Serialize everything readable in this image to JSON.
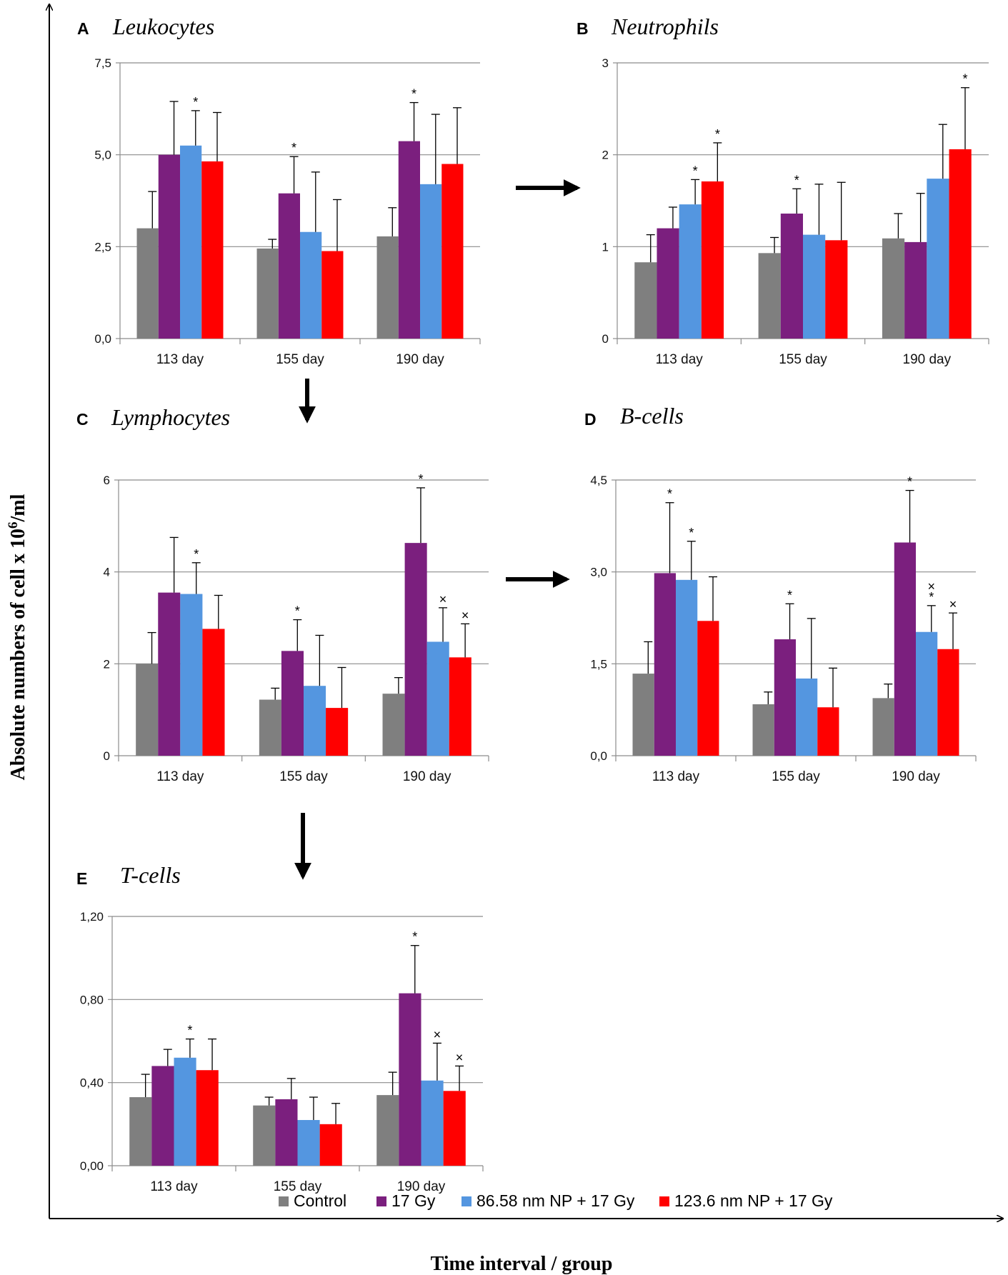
{
  "figure": {
    "y_axis_title": "Absolute numbers of cell x 10",
    "y_axis_title_sup": "6",
    "y_axis_title_tail": "/ml",
    "x_axis_title": "Time interval / group"
  },
  "legend": [
    {
      "name": "Control",
      "color": "#7f7f7f"
    },
    {
      "name": "17 Gy",
      "color": "#7b1f7e"
    },
    {
      "name": "86.58 nm NP + 17 Gy",
      "color": "#5496e0"
    },
    {
      "name": "123.6 nm NP + 17 Gy",
      "color": "#ff0000"
    }
  ],
  "chart_data": [
    {
      "letter": "A",
      "title": "Leukocytes",
      "type": "bar",
      "categories": [
        "113 day",
        "155 day",
        "190 day"
      ],
      "ylim": [
        0,
        7.5
      ],
      "yticks": [
        "0,0",
        "2,5",
        "5,0",
        "7,5"
      ],
      "series": [
        {
          "name": "Control",
          "values": [
            3.0,
            2.45,
            2.78
          ],
          "errors": [
            1.0,
            0.25,
            0.78
          ]
        },
        {
          "name": "17 Gy",
          "values": [
            5.0,
            3.95,
            5.37
          ],
          "errors": [
            1.45,
            1.0,
            1.05
          ]
        },
        {
          "name": "86.58 nm NP + 17 Gy",
          "values": [
            5.25,
            2.9,
            4.2
          ],
          "errors": [
            0.95,
            1.63,
            1.9
          ]
        },
        {
          "name": "123.6 nm NP + 17 Gy",
          "values": [
            4.82,
            2.38,
            4.75
          ],
          "errors": [
            1.33,
            1.4,
            1.53
          ]
        }
      ],
      "marks": [
        {
          "cat": 0,
          "series": 2,
          "text": "*"
        },
        {
          "cat": 1,
          "series": 1,
          "text": "*"
        },
        {
          "cat": 2,
          "series": 1,
          "text": "*"
        }
      ]
    },
    {
      "letter": "B",
      "title": "Neutrophils",
      "type": "bar",
      "categories": [
        "113 day",
        "155 day",
        "190 day"
      ],
      "ylim": [
        0,
        3
      ],
      "yticks": [
        "0",
        "1",
        "2",
        "3"
      ],
      "series": [
        {
          "name": "Control",
          "values": [
            0.83,
            0.93,
            1.09
          ],
          "errors": [
            0.3,
            0.17,
            0.27
          ]
        },
        {
          "name": "17 Gy",
          "values": [
            1.2,
            1.36,
            1.05
          ],
          "errors": [
            0.23,
            0.27,
            0.53
          ]
        },
        {
          "name": "86.58 nm NP + 17 Gy",
          "values": [
            1.46,
            1.13,
            1.74
          ],
          "errors": [
            0.27,
            0.55,
            0.59
          ]
        },
        {
          "name": "123.6 nm NP + 17 Gy",
          "values": [
            1.71,
            1.07,
            2.06
          ],
          "errors": [
            0.42,
            0.63,
            0.67
          ]
        }
      ],
      "marks": [
        {
          "cat": 0,
          "series": 2,
          "text": "*"
        },
        {
          "cat": 0,
          "series": 3,
          "text": "*"
        },
        {
          "cat": 1,
          "series": 1,
          "text": "*"
        },
        {
          "cat": 2,
          "series": 3,
          "text": "*"
        }
      ]
    },
    {
      "letter": "C",
      "title": "Lymphocytes",
      "type": "bar",
      "categories": [
        "113 day",
        "155 day",
        "190 day"
      ],
      "ylim": [
        0,
        6
      ],
      "yticks": [
        "0",
        "2",
        "4",
        "6"
      ],
      "series": [
        {
          "name": "Control",
          "values": [
            2.0,
            1.22,
            1.35
          ],
          "errors": [
            0.68,
            0.25,
            0.35
          ]
        },
        {
          "name": "17 Gy",
          "values": [
            3.55,
            2.28,
            4.63
          ],
          "errors": [
            1.2,
            0.68,
            1.2
          ]
        },
        {
          "name": "86.58 nm NP + 17 Gy",
          "values": [
            3.52,
            1.52,
            2.48
          ],
          "errors": [
            0.68,
            1.1,
            0.74
          ]
        },
        {
          "name": "123.6 nm NP + 17 Gy",
          "values": [
            2.76,
            1.04,
            2.14
          ],
          "errors": [
            0.73,
            0.88,
            0.73
          ]
        }
      ],
      "marks": [
        {
          "cat": 0,
          "series": 2,
          "text": "*"
        },
        {
          "cat": 1,
          "series": 1,
          "text": "*"
        },
        {
          "cat": 2,
          "series": 1,
          "text": "*"
        },
        {
          "cat": 2,
          "series": 2,
          "text": "×"
        },
        {
          "cat": 2,
          "series": 3,
          "text": "×"
        }
      ]
    },
    {
      "letter": "D",
      "title": "B-cells",
      "type": "bar",
      "categories": [
        "113 day",
        "155 day",
        "190 day"
      ],
      "ylim": [
        0,
        4.5
      ],
      "yticks": [
        "0,0",
        "1,5",
        "3,0",
        "4,5"
      ],
      "series": [
        {
          "name": "Control",
          "values": [
            1.34,
            0.84,
            0.94
          ],
          "errors": [
            0.52,
            0.2,
            0.23
          ]
        },
        {
          "name": "17 Gy",
          "values": [
            2.98,
            1.9,
            3.48
          ],
          "errors": [
            1.15,
            0.58,
            0.85
          ]
        },
        {
          "name": "86.58 nm NP + 17 Gy",
          "values": [
            2.87,
            1.26,
            2.02
          ],
          "errors": [
            0.63,
            0.98,
            0.43
          ]
        },
        {
          "name": "123.6 nm NP + 17 Gy",
          "values": [
            2.2,
            0.79,
            1.74
          ],
          "errors": [
            0.72,
            0.64,
            0.59
          ]
        }
      ],
      "marks": [
        {
          "cat": 0,
          "series": 1,
          "text": "*"
        },
        {
          "cat": 0,
          "series": 2,
          "text": "*"
        },
        {
          "cat": 1,
          "series": 1,
          "text": "*"
        },
        {
          "cat": 2,
          "series": 1,
          "text": "*"
        },
        {
          "cat": 2,
          "series": 2,
          "text": "*"
        },
        {
          "cat": 2,
          "series": 2,
          "text": "×"
        },
        {
          "cat": 2,
          "series": 3,
          "text": "×"
        }
      ]
    },
    {
      "letter": "E",
      "title": "T-cells",
      "type": "bar",
      "categories": [
        "113 day",
        "155 day",
        "190 day"
      ],
      "ylim": [
        0,
        1.2
      ],
      "yticks": [
        "0,00",
        "0,40",
        "0,80",
        "1,20"
      ],
      "series": [
        {
          "name": "Control",
          "values": [
            0.33,
            0.29,
            0.34
          ],
          "errors": [
            0.11,
            0.04,
            0.11
          ]
        },
        {
          "name": "17 Gy",
          "values": [
            0.48,
            0.32,
            0.83
          ],
          "errors": [
            0.08,
            0.1,
            0.23
          ]
        },
        {
          "name": "86.58 nm NP + 17 Gy",
          "values": [
            0.52,
            0.22,
            0.41
          ],
          "errors": [
            0.09,
            0.11,
            0.18
          ]
        },
        {
          "name": "123.6 nm NP + 17 Gy",
          "values": [
            0.46,
            0.2,
            0.36
          ],
          "errors": [
            0.15,
            0.1,
            0.12
          ]
        }
      ],
      "marks": [
        {
          "cat": 0,
          "series": 2,
          "text": "*"
        },
        {
          "cat": 2,
          "series": 1,
          "text": "*"
        },
        {
          "cat": 2,
          "series": 2,
          "text": "×"
        },
        {
          "cat": 2,
          "series": 3,
          "text": "×"
        }
      ]
    }
  ]
}
